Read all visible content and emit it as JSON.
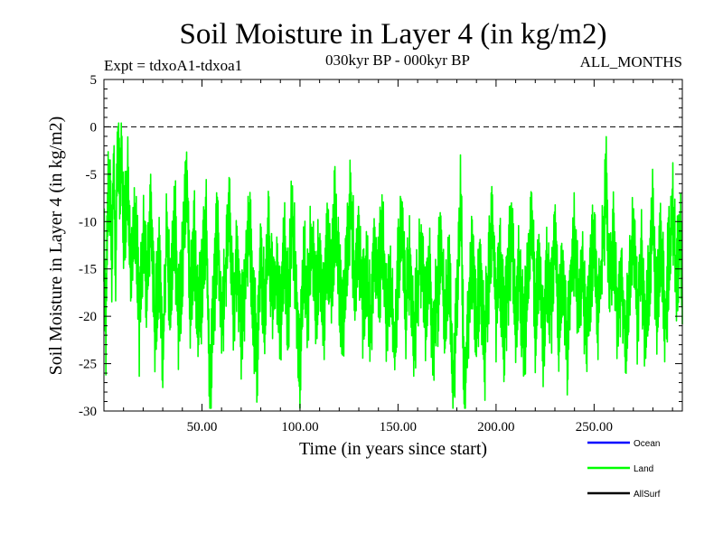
{
  "chart_data": {
    "type": "line",
    "title": "Soil Moisture in Layer 4 (in kg/m2)",
    "subtitle": "030kyr BP - 000kyr BP",
    "experiment": "Expt = tdxoA1-tdxoa1",
    "months_label": "ALL_MONTHS",
    "xlabel": "Time (in years since start)",
    "ylabel": "Soil Moisture in Layer 4 (in kg/m2)",
    "xlim": [
      0,
      295
    ],
    "ylim": [
      -30,
      5
    ],
    "x_ticks": [
      50,
      100,
      150,
      200,
      250
    ],
    "x_tick_labels": [
      "50.00",
      "100.00",
      "150.00",
      "200.00",
      "250.00"
    ],
    "y_ticks": [
      5,
      0,
      -5,
      -10,
      -15,
      -20,
      -25,
      -30
    ],
    "y_tick_labels": [
      "5",
      "0",
      "-5",
      "-10",
      "-15",
      "-20",
      "-25",
      "-30"
    ],
    "reference_line": {
      "y": 0,
      "style": "dashed"
    },
    "legend": [
      {
        "name": "Ocean",
        "color": "#0000ff"
      },
      {
        "name": "Land",
        "color": "#00ff00"
      },
      {
        "name": "AllSurf",
        "color": "#000000"
      }
    ],
    "series": [
      {
        "name": "Land",
        "color": "#00ff00",
        "anchors": [
          [
            0,
            -12
          ],
          [
            1,
            -21
          ],
          [
            2,
            -9
          ],
          [
            3,
            -6
          ],
          [
            4,
            -14
          ],
          [
            5,
            -3
          ],
          [
            6,
            -15
          ],
          [
            7,
            0
          ],
          [
            8,
            -8
          ],
          [
            9,
            -2
          ],
          [
            10,
            -12
          ],
          [
            12,
            -6
          ],
          [
            14,
            -16
          ],
          [
            16,
            -9
          ],
          [
            18,
            -20
          ],
          [
            20,
            -12
          ],
          [
            22,
            -17
          ],
          [
            24,
            -8
          ],
          [
            26,
            -21
          ],
          [
            28,
            -14
          ],
          [
            30,
            -24
          ],
          [
            32,
            -11
          ],
          [
            34,
            -18
          ],
          [
            36,
            -9
          ],
          [
            38,
            -20
          ],
          [
            40,
            -15
          ],
          [
            42,
            -5
          ],
          [
            44,
            -18
          ],
          [
            46,
            -12
          ],
          [
            48,
            -21
          ],
          [
            50,
            -16
          ],
          [
            52,
            -10
          ],
          [
            54,
            -28
          ],
          [
            56,
            -18
          ],
          [
            58,
            -11
          ],
          [
            60,
            -21
          ],
          [
            62,
            -15
          ],
          [
            64,
            -9
          ],
          [
            66,
            -19
          ],
          [
            68,
            -13
          ],
          [
            70,
            -22
          ],
          [
            72,
            -16
          ],
          [
            74,
            -10
          ],
          [
            76,
            -19
          ],
          [
            78,
            -24
          ],
          [
            80,
            -14
          ],
          [
            82,
            -20
          ],
          [
            84,
            -11
          ],
          [
            86,
            -18
          ],
          [
            88,
            -15
          ],
          [
            90,
            -21
          ],
          [
            92,
            -13
          ],
          [
            94,
            -19
          ],
          [
            96,
            -9
          ],
          [
            98,
            -17
          ],
          [
            100,
            -26
          ],
          [
            102,
            -13
          ],
          [
            104,
            -19
          ],
          [
            106,
            -11
          ],
          [
            108,
            -18
          ],
          [
            110,
            -14
          ],
          [
            112,
            -20
          ],
          [
            114,
            -12
          ],
          [
            116,
            -17
          ],
          [
            118,
            -8
          ],
          [
            120,
            -17
          ],
          [
            122,
            -21
          ],
          [
            124,
            -13
          ],
          [
            126,
            -7
          ],
          [
            128,
            -18
          ],
          [
            130,
            -12
          ],
          [
            132,
            -19
          ],
          [
            134,
            -15
          ],
          [
            136,
            -22
          ],
          [
            138,
            -12
          ],
          [
            140,
            -17
          ],
          [
            142,
            -11
          ],
          [
            144,
            -20
          ],
          [
            146,
            -15
          ],
          [
            148,
            -23
          ],
          [
            150,
            -16
          ],
          [
            152,
            -11
          ],
          [
            154,
            -20
          ],
          [
            156,
            -14
          ],
          [
            158,
            -22
          ],
          [
            160,
            -17
          ],
          [
            162,
            -12
          ],
          [
            164,
            -20
          ],
          [
            166,
            -14
          ],
          [
            168,
            -23
          ],
          [
            170,
            -18
          ],
          [
            172,
            -12
          ],
          [
            174,
            -21
          ],
          [
            176,
            -15
          ],
          [
            178,
            -28
          ],
          [
            180,
            -19
          ],
          [
            182,
            -8
          ],
          [
            184,
            -29
          ],
          [
            186,
            -19
          ],
          [
            188,
            -13
          ],
          [
            190,
            -21
          ],
          [
            192,
            -15
          ],
          [
            194,
            -24
          ],
          [
            196,
            -17
          ],
          [
            198,
            -10
          ],
          [
            200,
            -20
          ],
          [
            202,
            -14
          ],
          [
            204,
            -22
          ],
          [
            206,
            -16
          ],
          [
            208,
            -11
          ],
          [
            210,
            -20
          ],
          [
            212,
            -15
          ],
          [
            214,
            -23
          ],
          [
            216,
            -18
          ],
          [
            218,
            -9
          ],
          [
            220,
            -20
          ],
          [
            222,
            -14
          ],
          [
            224,
            -22
          ],
          [
            226,
            -16
          ],
          [
            228,
            -19
          ],
          [
            230,
            -12
          ],
          [
            232,
            -21
          ],
          [
            234,
            -15
          ],
          [
            236,
            -23
          ],
          [
            238,
            -17
          ],
          [
            240,
            -11
          ],
          [
            242,
            -20
          ],
          [
            244,
            -15
          ],
          [
            246,
            -22
          ],
          [
            248,
            -17
          ],
          [
            250,
            -11
          ],
          [
            252,
            -20
          ],
          [
            254,
            -14
          ],
          [
            256,
            -6
          ],
          [
            258,
            -17
          ],
          [
            260,
            -12
          ],
          [
            262,
            -21
          ],
          [
            264,
            -15
          ],
          [
            266,
            -23
          ],
          [
            268,
            -17
          ],
          [
            270,
            -11
          ],
          [
            272,
            -20
          ],
          [
            274,
            -14
          ],
          [
            276,
            -22
          ],
          [
            278,
            -16
          ],
          [
            280,
            -10
          ],
          [
            282,
            -19
          ],
          [
            284,
            -12
          ],
          [
            286,
            -21
          ],
          [
            288,
            -14
          ],
          [
            290,
            -9
          ],
          [
            292,
            -16
          ],
          [
            294,
            -11
          ],
          [
            295,
            -15
          ]
        ]
      }
    ]
  }
}
